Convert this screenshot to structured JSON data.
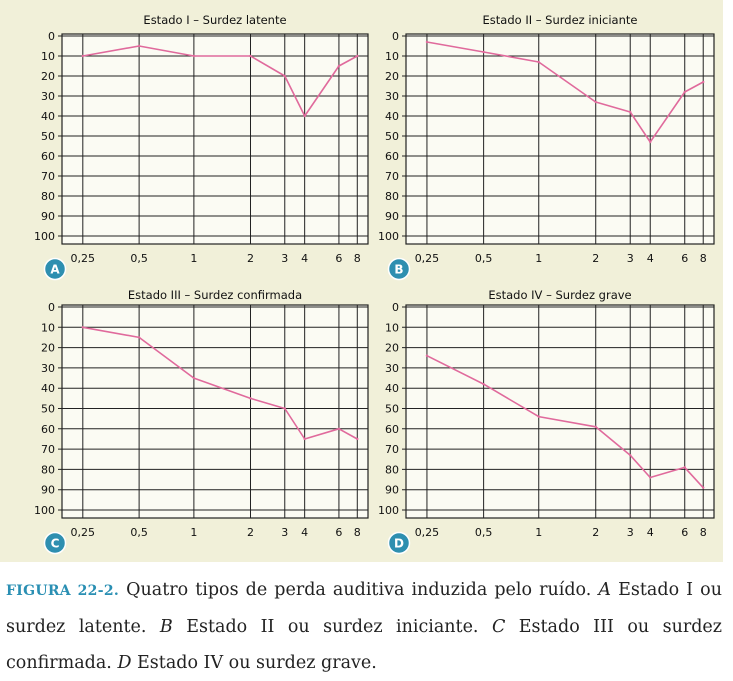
{
  "chart_data": [
    {
      "type": "line",
      "badge": "A",
      "title": "Estado I – Surdez latente",
      "x": [
        "0,25",
        "0,5",
        "1",
        "2",
        "3",
        "4",
        "6",
        "8"
      ],
      "yticks": [
        "0",
        "10",
        "20",
        "30",
        "40",
        "50",
        "60",
        "70",
        "80",
        "90",
        "100"
      ],
      "ylim": [
        0,
        100
      ],
      "y_inverted": true,
      "grid": true,
      "series": [
        {
          "values": [
            10,
            5,
            10,
            10,
            20,
            40,
            15,
            10
          ]
        }
      ],
      "line_color": "#e06a9c"
    },
    {
      "type": "line",
      "badge": "B",
      "title": "Estado II – Surdez iniciante",
      "x": [
        "0,25",
        "0,5",
        "1",
        "2",
        "3",
        "4",
        "6",
        "8"
      ],
      "yticks": [
        "0",
        "10",
        "20",
        "30",
        "40",
        "50",
        "60",
        "70",
        "80",
        "90",
        "100"
      ],
      "ylim": [
        0,
        100
      ],
      "y_inverted": true,
      "grid": true,
      "series": [
        {
          "values": [
            3,
            8,
            13,
            33,
            38,
            53,
            28,
            23
          ]
        }
      ],
      "line_color": "#e06a9c"
    },
    {
      "type": "line",
      "badge": "C",
      "title": "Estado III – Surdez confirmada",
      "x": [
        "0,25",
        "0,5",
        "1",
        "2",
        "3",
        "4",
        "6",
        "8"
      ],
      "yticks": [
        "0",
        "10",
        "20",
        "30",
        "40",
        "50",
        "60",
        "70",
        "80",
        "90",
        "100"
      ],
      "ylim": [
        0,
        100
      ],
      "y_inverted": true,
      "grid": true,
      "series": [
        {
          "values": [
            10,
            15,
            35,
            45,
            50,
            65,
            60,
            65
          ]
        }
      ],
      "line_color": "#e06a9c"
    },
    {
      "type": "line",
      "badge": "D",
      "title": "Estado IV – Surdez grave",
      "x": [
        "0,25",
        "0,5",
        "1",
        "2",
        "3",
        "4",
        "6",
        "8"
      ],
      "yticks": [
        "0",
        "10",
        "20",
        "30",
        "40",
        "50",
        "60",
        "70",
        "80",
        "90",
        "100"
      ],
      "ylim": [
        0,
        100
      ],
      "y_inverted": true,
      "grid": true,
      "series": [
        {
          "values": [
            24,
            38,
            54,
            59,
            73,
            84,
            79,
            89
          ]
        }
      ],
      "line_color": "#e06a9c"
    }
  ],
  "colors": {
    "panel_background": "#f1f0d9",
    "badge": "#2e8fb0",
    "line": "#e06a9c",
    "figure_label": "#2a8fb3"
  },
  "caption": {
    "figure_label": "FIGURA 22-2.",
    "t1": " Quatro tipos de perda auditiva induzida pelo ruído. ",
    "a": "A",
    "t2": " Estado I ou surdez latente. ",
    "b": "B",
    "t3": " Estado II ou surdez iniciante. ",
    "c": "C",
    "t4": " Estado III ou surdez confirmada. ",
    "d": "D",
    "t5": " Estado IV ou surdez grave."
  }
}
